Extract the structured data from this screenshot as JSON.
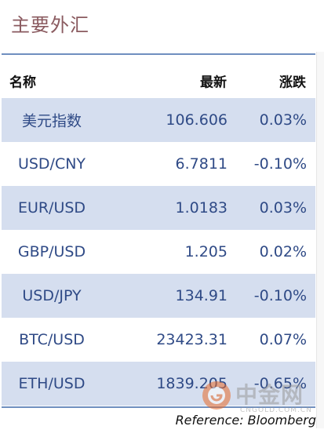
{
  "title": "主要外汇",
  "table": {
    "headers": {
      "name": "名称",
      "last": "最新",
      "change": "涨跌"
    },
    "rows": [
      {
        "name": "美元指数",
        "last": "106.606",
        "change": "0.03%"
      },
      {
        "name": "USD/CNY",
        "last": "6.7811",
        "change": "-0.10%"
      },
      {
        "name": "EUR/USD",
        "last": "1.0183",
        "change": "0.03%"
      },
      {
        "name": "GBP/USD",
        "last": "1.205",
        "change": "0.02%"
      },
      {
        "name": "USD/JPY",
        "last": "134.91",
        "change": "-0.10%"
      },
      {
        "name": "BTC/USD",
        "last": "23423.31",
        "change": "0.07%"
      },
      {
        "name": "ETH/USD",
        "last": "1839.205",
        "change": "-0.65%"
      }
    ]
  },
  "source": "Reference: Bloomberg",
  "watermark": {
    "text": "中金网",
    "sub": "CNGOLD.COM.CN",
    "icon": "cngold-logo-icon"
  },
  "colors": {
    "title": "#8a5a5f",
    "rule": "#6f8fbf",
    "row_shade": "#d5deef",
    "cell_text": "#2f4a86"
  }
}
